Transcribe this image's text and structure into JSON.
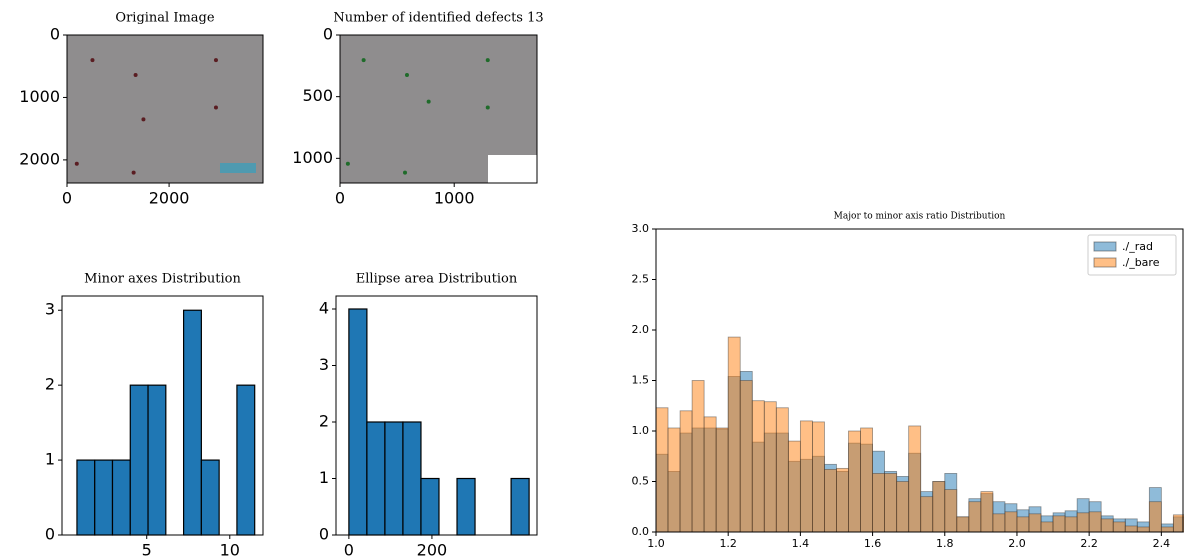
{
  "chart_data": [
    {
      "type": "image",
      "title": "Original Image",
      "xlim": [
        0,
        3840
      ],
      "ylim": [
        2370,
        0
      ],
      "xticks": [
        0,
        2000
      ],
      "yticks": [
        0,
        1000,
        2000
      ]
    },
    {
      "type": "image",
      "title": "Number of identified defects 13",
      "xlim": [
        0,
        1725
      ],
      "ylim": [
        1200,
        0
      ],
      "xticks": [
        0,
        1000
      ],
      "yticks": [
        0,
        500,
        1000
      ]
    },
    {
      "type": "histogram",
      "title": "Minor axes Distribution",
      "color": "#1f77b4",
      "bins": [
        0.8,
        1.87,
        2.94,
        4.01,
        5.08,
        6.15,
        7.22,
        8.29,
        9.36,
        10.43,
        11.5
      ],
      "values": [
        1,
        1,
        1,
        2,
        2,
        0,
        3,
        1,
        0,
        2
      ],
      "xlim": [
        -0.1,
        12.0
      ],
      "ylim": [
        0,
        3.19
      ],
      "xticks": [
        5,
        10
      ],
      "yticks": [
        0,
        1,
        2,
        3
      ]
    },
    {
      "type": "histogram",
      "title": "Ellipse area Distribution",
      "color": "#1f77b4",
      "bins": [
        0,
        43.4,
        86.8,
        130.2,
        173.6,
        217,
        260.4,
        303.8,
        347.2,
        390.6,
        434
      ],
      "values": [
        4,
        2,
        2,
        2,
        1,
        0,
        1,
        0,
        0,
        1
      ],
      "xlim": [
        -31,
        453
      ],
      "ylim": [
        0,
        4.23
      ],
      "xticks": [
        0,
        200
      ],
      "yticks": [
        0,
        1,
        2,
        3,
        4
      ]
    },
    {
      "type": "overlay-histogram",
      "title": "Major to minor axis ratio Distribution",
      "legend": "upper right",
      "bins": [
        1.0,
        1.0333,
        1.0667,
        1.1,
        1.1333,
        1.1667,
        1.2,
        1.2333,
        1.2667,
        1.3,
        1.3333,
        1.3667,
        1.4,
        1.4333,
        1.4667,
        1.5,
        1.5333,
        1.5667,
        1.6,
        1.6333,
        1.6667,
        1.7,
        1.7333,
        1.7667,
        1.8,
        1.8333,
        1.8667,
        1.9,
        1.9333,
        1.9667,
        2.0,
        2.0333,
        2.0667,
        2.1,
        2.1333,
        2.1667,
        2.2,
        2.2333,
        2.2667,
        2.3,
        2.3333,
        2.3667,
        2.4,
        2.4333,
        2.4667
      ],
      "series": [
        {
          "name": "./_rad",
          "color": "#1f77b4",
          "values": [
            0.77,
            0.6,
            0.98,
            1.03,
            1.03,
            1.02,
            1.54,
            1.59,
            0.89,
            0.98,
            0.98,
            0.7,
            0.72,
            0.75,
            0.67,
            0.6,
            0.88,
            0.87,
            0.8,
            0.6,
            0.55,
            0.78,
            0.4,
            0.5,
            0.58,
            0.15,
            0.33,
            0.38,
            0.3,
            0.28,
            0.22,
            0.25,
            0.16,
            0.19,
            0.21,
            0.33,
            0.3,
            0.16,
            0.13,
            0.13,
            0.1,
            0.44,
            0.08,
            0.15
          ]
        },
        {
          "name": "./_bare",
          "color": "#ff7f0e",
          "values": [
            1.23,
            1.03,
            1.2,
            1.5,
            1.14,
            1.03,
            1.93,
            1.5,
            1.3,
            1.29,
            1.23,
            0.9,
            1.1,
            1.09,
            0.62,
            0.63,
            1.0,
            1.03,
            0.58,
            0.58,
            0.5,
            1.05,
            0.35,
            0.5,
            0.42,
            0.15,
            0.3,
            0.4,
            0.18,
            0.2,
            0.15,
            0.18,
            0.1,
            0.16,
            0.15,
            0.19,
            0.2,
            0.13,
            0.1,
            0.06,
            0.05,
            0.3,
            0.05,
            0.17
          ]
        }
      ],
      "xlim": [
        1.0,
        2.46
      ],
      "ylim": [
        0,
        3.0
      ],
      "xticks": [
        {
          "value": 1.0,
          "label": "1.0"
        },
        1.2,
        1.4,
        1.6,
        1.8,
        {
          "value": 2.0,
          "label": "2.0"
        },
        2.2,
        2.4
      ],
      "yticks": [
        {
          "value": 0,
          "label": "0.0"
        },
        0.5,
        {
          "value": 1.0,
          "label": "1.0"
        },
        1.5,
        {
          "value": 2.0,
          "label": "2.0"
        },
        2.5,
        {
          "value": 3.0,
          "label": "3.0"
        }
      ]
    }
  ]
}
